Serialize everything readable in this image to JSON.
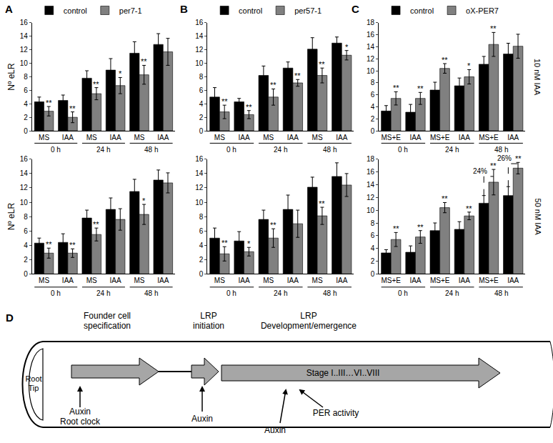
{
  "chart_data": [
    {
      "type": "bar",
      "panel_label": "A",
      "y_label": "Nº eLR",
      "legend": "top left",
      "grid": false,
      "categories": [
        "MS",
        "IAA",
        "MS",
        "IAA",
        "MS",
        "IAA"
      ],
      "groups": [
        "0 h",
        "0 h",
        "24 h",
        "24 h",
        "48 h",
        "48 h"
      ],
      "ylim": [
        0,
        16
      ],
      "yticks": [
        0,
        2,
        4,
        6,
        8,
        10,
        12,
        14,
        16
      ],
      "series": [
        {
          "name": "control",
          "color": "#000000",
          "values": [
            4.3,
            4.5,
            7.8,
            9.0,
            11.5,
            12.8
          ],
          "errors": [
            0.7,
            0.8,
            1.1,
            1.7,
            1.7,
            1.6
          ],
          "significance": [
            null,
            null,
            null,
            null,
            null,
            null
          ]
        },
        {
          "name": "per7-1",
          "color": "#808080",
          "values": [
            2.9,
            2.0,
            5.5,
            6.7,
            8.3,
            11.7
          ],
          "errors": [
            0.7,
            0.8,
            0.9,
            1.2,
            1.4,
            2.0
          ],
          "significance": [
            "**",
            "**",
            "**",
            "*",
            "**",
            null
          ]
        }
      ]
    },
    {
      "type": "bar",
      "y_label": "Nº eLR",
      "grid": false,
      "categories": [
        "MS",
        "IAA",
        "MS",
        "IAA",
        "MS",
        "IAA"
      ],
      "groups": [
        "0 h",
        "0 h",
        "24 h",
        "24 h",
        "48 h",
        "48 h"
      ],
      "ylim": [
        0,
        16
      ],
      "yticks": [
        0,
        2,
        4,
        6,
        8,
        10,
        12,
        14,
        16
      ],
      "series": [
        {
          "name": "control",
          "color": "#000000",
          "values": [
            4.3,
            4.4,
            7.8,
            9.0,
            11.5,
            13.1
          ],
          "errors": [
            0.7,
            1.2,
            1.1,
            1.6,
            1.7,
            1.4
          ],
          "significance": [
            null,
            null,
            null,
            null,
            null,
            null
          ]
        },
        {
          "name": "per7-1",
          "color": "#808080",
          "values": [
            2.9,
            2.9,
            5.5,
            7.6,
            8.3,
            12.7
          ],
          "errors": [
            0.7,
            0.6,
            0.9,
            1.5,
            1.4,
            1.4
          ],
          "significance": [
            "**",
            "**",
            "**",
            null,
            "*",
            null
          ]
        }
      ]
    },
    {
      "type": "bar",
      "panel_label": "B",
      "legend": "top left",
      "grid": false,
      "categories": [
        "MS",
        "IAA",
        "MS",
        "IAA",
        "MS",
        "IAA"
      ],
      "groups": [
        "0 h",
        "0 h",
        "24 h",
        "24 h",
        "48 h",
        "48 h"
      ],
      "ylim": [
        0,
        16
      ],
      "yticks": [
        0,
        2,
        4,
        6,
        8,
        10,
        12,
        14,
        16
      ],
      "series": [
        {
          "name": "control",
          "color": "#000000",
          "values": [
            5.0,
            4.3,
            8.2,
            9.3,
            12.1,
            13.0
          ],
          "errors": [
            1.4,
            0.5,
            1.4,
            0.9,
            1.7,
            0.9
          ],
          "significance": [
            null,
            null,
            null,
            null,
            null,
            null
          ]
        },
        {
          "name": "per57-1",
          "color": "#808080",
          "values": [
            2.8,
            2.4,
            5.0,
            7.1,
            8.2,
            11.2
          ],
          "errors": [
            1.0,
            0.6,
            1.2,
            0.5,
            1.1,
            0.7
          ],
          "significance": [
            "**",
            "**",
            "**",
            "**",
            "**",
            "*"
          ]
        }
      ]
    },
    {
      "type": "bar",
      "grid": false,
      "categories": [
        "MS",
        "IAA",
        "MS",
        "IAA",
        "MS",
        "IAA"
      ],
      "groups": [
        "0 h",
        "0 h",
        "24 h",
        "24 h",
        "48 h",
        "48 h"
      ],
      "ylim": [
        0,
        16
      ],
      "yticks": [
        0,
        2,
        4,
        6,
        8,
        10,
        12,
        14,
        16
      ],
      "series": [
        {
          "name": "control",
          "color": "#000000",
          "values": [
            5.0,
            4.6,
            7.6,
            9.0,
            12.1,
            13.6
          ],
          "errors": [
            1.4,
            1.3,
            1.3,
            2.0,
            1.4,
            1.9
          ],
          "significance": [
            null,
            null,
            null,
            null,
            null,
            null
          ]
        },
        {
          "name": "per57-1",
          "color": "#808080",
          "values": [
            2.8,
            3.1,
            5.0,
            7.0,
            8.1,
            12.4
          ],
          "errors": [
            1.0,
            0.6,
            1.3,
            1.9,
            1.2,
            1.6
          ],
          "significance": [
            "**",
            "*",
            "**",
            null,
            "**",
            null
          ]
        }
      ]
    },
    {
      "type": "bar",
      "panel_label": "C",
      "side_label": "10 nM IAA",
      "legend": "top left",
      "grid": false,
      "categories": [
        "MS+E",
        "IAA",
        "MS+E",
        "IAA",
        "MS+E",
        "IAA"
      ],
      "groups": [
        "0 h",
        "0 h",
        "24 h",
        "24 h",
        "48 h",
        "48 h"
      ],
      "ylim": [
        0,
        18
      ],
      "yticks": [
        0,
        2,
        4,
        6,
        8,
        10,
        12,
        14,
        16,
        18
      ],
      "series": [
        {
          "name": "control",
          "color": "#000000",
          "values": [
            3.3,
            3.1,
            6.8,
            7.5,
            11.1,
            12.8
          ],
          "errors": [
            0.9,
            1.3,
            1.3,
            1.3,
            1.3,
            1.8
          ],
          "significance": [
            null,
            null,
            null,
            null,
            null,
            null
          ]
        },
        {
          "name": "oX-PER7",
          "color": "#808080",
          "values": [
            5.4,
            5.4,
            10.4,
            9.0,
            14.4,
            14.1
          ],
          "errors": [
            1.1,
            1.0,
            0.8,
            1.2,
            2.0,
            2.0
          ],
          "significance": [
            "**",
            "**",
            "**",
            "*",
            "**",
            null
          ]
        }
      ]
    },
    {
      "type": "bar",
      "side_label": "50 nM IAA",
      "grid": false,
      "categories": [
        "MS+E",
        "IAA",
        "MS+E",
        "IAA",
        "MS+E",
        "IAA"
      ],
      "groups": [
        "0 h",
        "0 h",
        "24 h",
        "24 h",
        "48 h",
        "48 h"
      ],
      "ylim": [
        0,
        18
      ],
      "yticks": [
        0,
        2,
        4,
        6,
        8,
        10,
        12,
        14,
        16,
        18
      ],
      "series": [
        {
          "name": "control",
          "color": "#000000",
          "values": [
            3.3,
            3.4,
            6.8,
            7.0,
            11.1,
            12.3
          ],
          "errors": [
            0.5,
            1.0,
            1.2,
            1.2,
            1.2,
            1.4
          ],
          "significance": [
            null,
            null,
            null,
            null,
            null,
            null
          ]
        },
        {
          "name": "oX-PER7",
          "color": "#808080",
          "values": [
            5.4,
            5.8,
            10.4,
            9.1,
            14.4,
            16.6
          ],
          "errors": [
            1.1,
            1.0,
            0.8,
            0.6,
            2.0,
            0.9
          ],
          "significance": [
            "**",
            "**",
            "**",
            "**",
            "**",
            "**"
          ]
        }
      ],
      "annotations": [
        {
          "text": "24%",
          "category_index": 4,
          "y_start": 12.3,
          "y_end": 15.3
        },
        {
          "text": "26%",
          "category_index": 5,
          "y_start": 13.7,
          "y_end": 17.3
        }
      ]
    }
  ],
  "diagram": {
    "label": "D",
    "header": [
      [
        "Founder cell",
        "specification"
      ],
      [
        "LRP",
        "initiation"
      ],
      [
        "LRP",
        "Development/emergence"
      ]
    ],
    "root_tip": [
      "Root",
      "Tip"
    ],
    "stage_text": "Stage I..III…VI..VIII",
    "signals": [
      [
        "Auxin",
        "Root clock"
      ],
      [
        "Auxin"
      ],
      [
        "Auxin"
      ],
      [
        "PER activity"
      ]
    ]
  }
}
